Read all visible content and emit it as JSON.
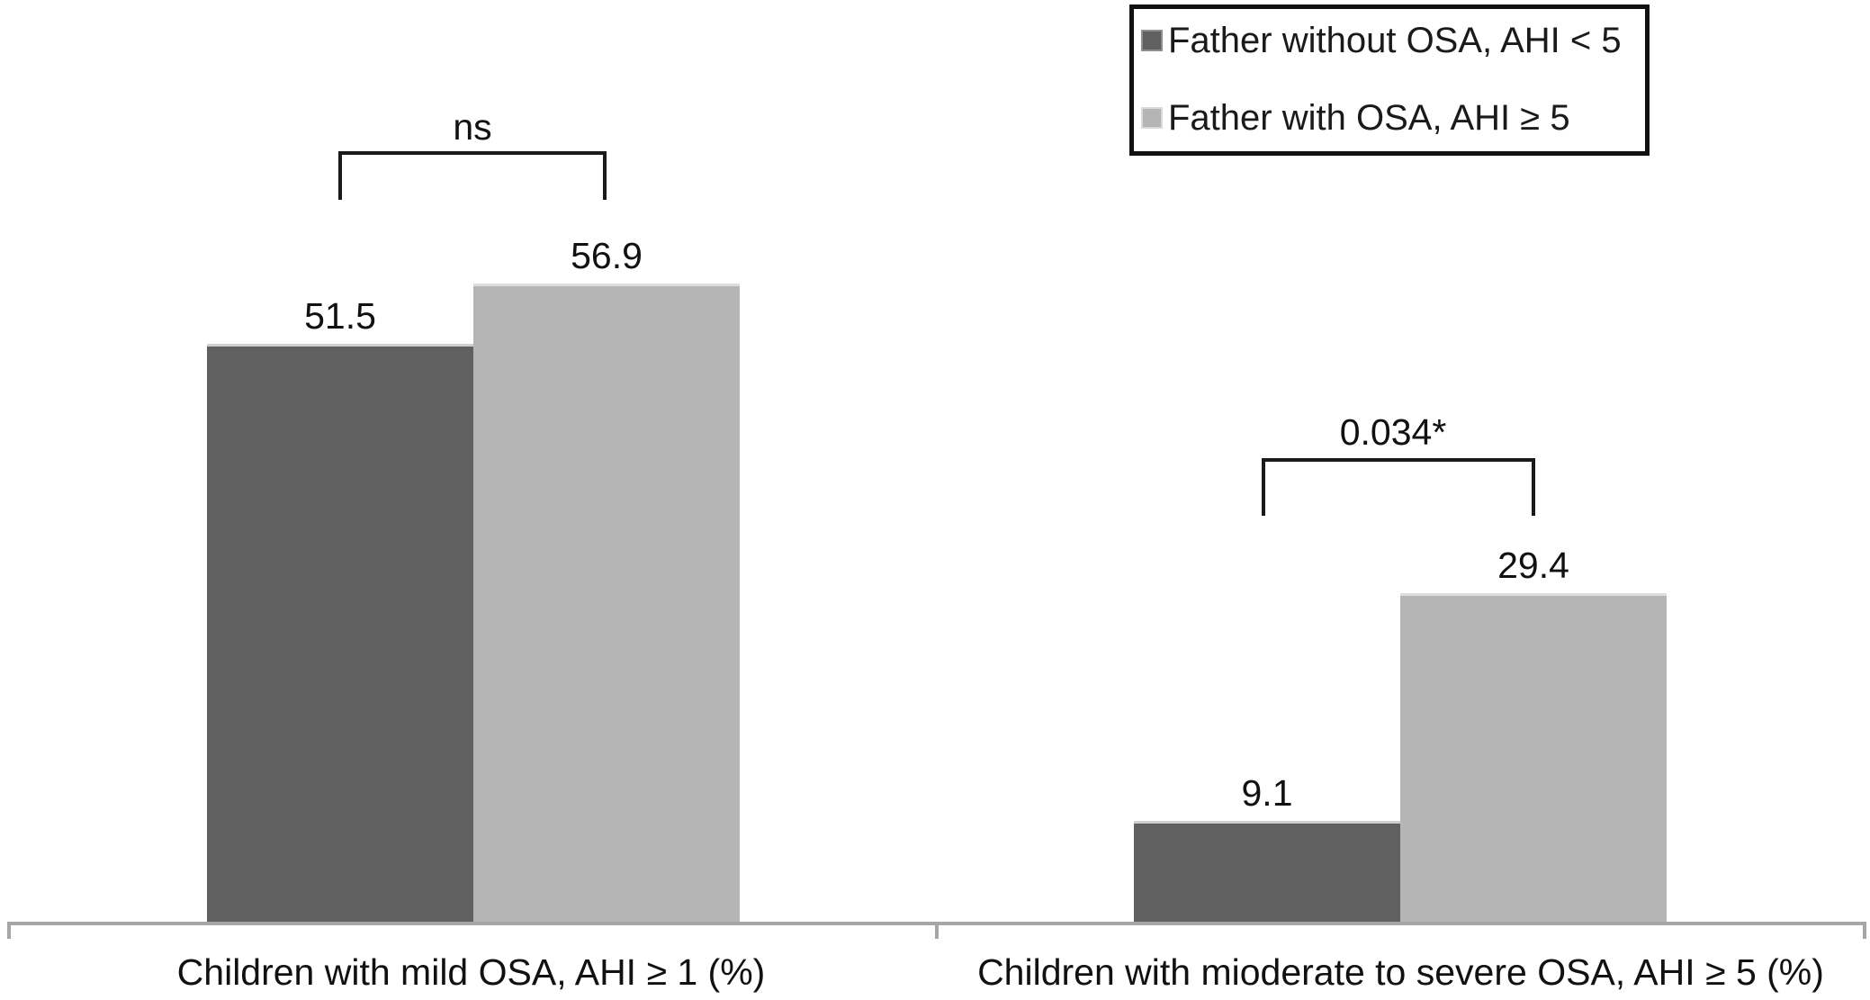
{
  "chart_data": {
    "type": "bar",
    "title": "",
    "xlabel": "",
    "ylabel": "",
    "categories": [
      "Children with mild OSA, AHI ≥ 1 (%)",
      "Children with mioderate to severe OSA, AHI ≥ 5 (%)"
    ],
    "series": [
      {
        "name": "Father without OSA, AHI < 5",
        "color": "#606060",
        "values": [
          51.5,
          9.1
        ]
      },
      {
        "name": "Father with OSA, AHI ≥ 5",
        "color": "#b5b5b5",
        "values": [
          56.9,
          29.4
        ]
      }
    ],
    "annotations": [
      {
        "category_index": 0,
        "label": "ns"
      },
      {
        "category_index": 1,
        "label": "0.034*"
      }
    ],
    "value_labels_shown": true,
    "y_axis_visible": false,
    "ylim": [
      0,
      80
    ],
    "grid": false,
    "legend_position": "top-right",
    "axis_line_color": "#a6a6a6",
    "bracket_color": "#1a1a1a"
  }
}
